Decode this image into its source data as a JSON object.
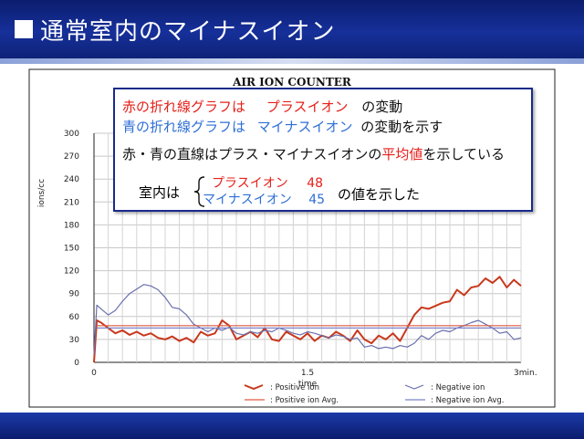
{
  "header": {
    "title": "通常室内のマイナスイオン"
  },
  "colors": {
    "positive": "#c8381c",
    "negative": "#6a6fae",
    "positive_avg": "#e05a40",
    "negative_avg": "#7b85c8"
  },
  "callout": {
    "line1": {
      "a": "赤の折れ線グラフは",
      "b": "プラスイオン",
      "c": "の変動"
    },
    "line2": {
      "a": "青の折れ線グラフは",
      "b": "マイナスイオン",
      "c": "の変動を示す"
    },
    "line3": {
      "a": "赤・青の直線は",
      "b": "プラス・マイナスイオンの",
      "c": "平均値",
      "d": "を示している"
    },
    "line4": {
      "prefix": "室内は",
      "plus_label": "プラスイオン",
      "plus_value": "48",
      "minus_label": "マイナスイオン",
      "minus_value": "45",
      "suffix": "の値を示した"
    }
  },
  "chart_data": {
    "type": "line",
    "title": "AIR ION  COUNTER",
    "xlabel": "time",
    "ylabel": "ions/cc",
    "xlim": [
      0,
      3
    ],
    "ylim": [
      0,
      300
    ],
    "x_ticks": [
      "0",
      "1.5",
      "3min."
    ],
    "y_ticks": [
      "0",
      "30",
      "60",
      "90",
      "120",
      "150",
      "180",
      "210",
      "240",
      "270",
      "300"
    ],
    "grid": true,
    "legend_position": "bottom",
    "legend": [
      ": Positive ion",
      ": Positive ion Avg.",
      ": Negative ion",
      ": Negative ion Avg."
    ],
    "series": [
      {
        "name": ": Positive ion",
        "x": [
          0,
          0.02,
          0.05,
          0.1,
          0.15,
          0.2,
          0.25,
          0.3,
          0.35,
          0.4,
          0.45,
          0.5,
          0.55,
          0.6,
          0.65,
          0.7,
          0.75,
          0.8,
          0.85,
          0.9,
          0.95,
          1.0,
          1.05,
          1.1,
          1.15,
          1.2,
          1.25,
          1.3,
          1.35,
          1.4,
          1.45,
          1.5,
          1.55,
          1.6,
          1.65,
          1.7,
          1.75,
          1.8,
          1.85,
          1.9,
          1.95,
          2.0,
          2.05,
          2.1,
          2.15,
          2.2,
          2.25,
          2.3,
          2.35,
          2.4,
          2.45,
          2.5,
          2.55,
          2.6,
          2.65,
          2.7,
          2.75,
          2.8,
          2.85,
          2.9,
          2.95,
          3.0
        ],
        "values": [
          0,
          55,
          52,
          45,
          38,
          42,
          36,
          40,
          35,
          38,
          32,
          30,
          34,
          28,
          32,
          26,
          40,
          35,
          38,
          55,
          48,
          30,
          35,
          40,
          33,
          45,
          30,
          28,
          40,
          35,
          30,
          38,
          28,
          35,
          32,
          40,
          35,
          28,
          42,
          30,
          25,
          35,
          30,
          38,
          28,
          45,
          62,
          72,
          70,
          74,
          78,
          80,
          95,
          88,
          98,
          100,
          110,
          104,
          112,
          98,
          108,
          100
        ]
      },
      {
        "name": ": Negative ion",
        "x": [
          0,
          0.02,
          0.05,
          0.1,
          0.15,
          0.2,
          0.25,
          0.3,
          0.35,
          0.4,
          0.45,
          0.5,
          0.55,
          0.6,
          0.65,
          0.7,
          0.75,
          0.8,
          0.85,
          0.9,
          0.95,
          1.0,
          1.05,
          1.1,
          1.15,
          1.2,
          1.25,
          1.3,
          1.35,
          1.4,
          1.45,
          1.5,
          1.55,
          1.6,
          1.65,
          1.7,
          1.75,
          1.8,
          1.85,
          1.9,
          1.95,
          2.0,
          2.05,
          2.1,
          2.15,
          2.2,
          2.25,
          2.3,
          2.35,
          2.4,
          2.45,
          2.5,
          2.55,
          2.6,
          2.65,
          2.7,
          2.75,
          2.8,
          2.85,
          2.9,
          2.95,
          3.0
        ],
        "values": [
          10,
          75,
          70,
          62,
          68,
          80,
          90,
          96,
          102,
          100,
          95,
          85,
          72,
          70,
          62,
          50,
          45,
          40,
          45,
          42,
          46,
          38,
          36,
          40,
          38,
          42,
          40,
          45,
          42,
          38,
          36,
          40,
          38,
          35,
          32,
          36,
          34,
          30,
          32,
          20,
          22,
          18,
          20,
          18,
          22,
          20,
          25,
          35,
          30,
          38,
          42,
          40,
          45,
          48,
          52,
          55,
          50,
          45,
          38,
          40,
          30,
          32
        ]
      },
      {
        "name": ": Positive ion Avg.",
        "x": [
          0.02,
          3.0
        ],
        "values": [
          48,
          48
        ]
      },
      {
        "name": ": Negative ion Avg.",
        "x": [
          0.02,
          3.0
        ],
        "values": [
          45,
          45
        ]
      }
    ]
  }
}
